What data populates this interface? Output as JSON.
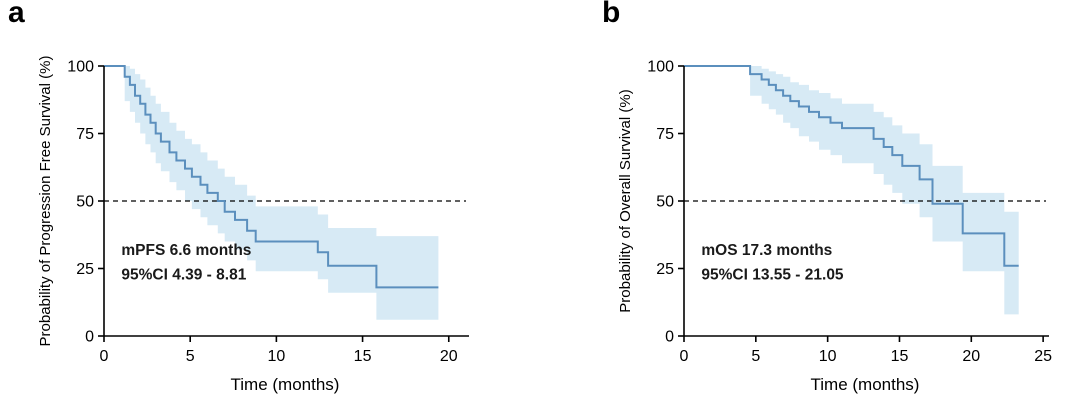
{
  "figure": {
    "panels": [
      {
        "label": "a"
      },
      {
        "label": "b"
      }
    ]
  },
  "colors": {
    "curve": "#5b8fbd",
    "band": "#d5e9f4",
    "axis": "#000000",
    "median": "#000000",
    "text": "#000000",
    "background": "#ffffff"
  },
  "chart_data": [
    {
      "type": "line",
      "subtype": "kaplan-meier-step",
      "panel": "a",
      "xlabel": "Time (months)",
      "ylabel": "Probability of Progression Free Survival (%)",
      "annotations": [
        "mPFS 6.6 months",
        "95%CI 4.39 - 8.81"
      ],
      "median_months": 6.6,
      "ci_text": "4.39 - 8.81",
      "xlim": [
        0,
        21
      ],
      "ylim": [
        0,
        100
      ],
      "xticks": [
        0,
        5,
        10,
        15,
        20
      ],
      "yticks": [
        0,
        25,
        50,
        75,
        100
      ],
      "median_y": 50,
      "end_time": 19.4,
      "steps": [
        [
          0,
          100
        ],
        [
          1.2,
          96
        ],
        [
          1.5,
          93
        ],
        [
          1.8,
          89
        ],
        [
          2.1,
          86
        ],
        [
          2.4,
          82
        ],
        [
          2.7,
          79
        ],
        [
          3.0,
          75
        ],
        [
          3.3,
          72
        ],
        [
          3.8,
          68
        ],
        [
          4.2,
          65
        ],
        [
          4.7,
          62
        ],
        [
          5.1,
          59
        ],
        [
          5.6,
          56
        ],
        [
          6.0,
          53
        ],
        [
          6.6,
          50
        ],
        [
          7.0,
          46
        ],
        [
          7.6,
          43
        ],
        [
          8.3,
          39
        ],
        [
          8.8,
          35
        ],
        [
          12.4,
          31
        ],
        [
          13.0,
          26
        ],
        [
          15.8,
          18
        ]
      ],
      "ci_upper": [
        [
          0,
          100
        ],
        [
          1.2,
          100
        ],
        [
          1.5,
          99
        ],
        [
          1.8,
          97
        ],
        [
          2.1,
          95
        ],
        [
          2.4,
          92
        ],
        [
          2.7,
          89
        ],
        [
          3.0,
          86
        ],
        [
          3.3,
          83
        ],
        [
          3.8,
          79
        ],
        [
          4.2,
          76
        ],
        [
          4.7,
          73
        ],
        [
          5.1,
          71
        ],
        [
          5.6,
          68
        ],
        [
          6.0,
          65
        ],
        [
          6.6,
          62
        ],
        [
          7.0,
          59
        ],
        [
          7.6,
          56
        ],
        [
          8.3,
          52
        ],
        [
          8.8,
          48
        ],
        [
          12.4,
          45
        ],
        [
          13.0,
          40
        ],
        [
          15.8,
          37
        ]
      ],
      "ci_lower": [
        [
          0,
          100
        ],
        [
          1.2,
          87
        ],
        [
          1.5,
          83
        ],
        [
          1.8,
          79
        ],
        [
          2.1,
          75
        ],
        [
          2.4,
          71
        ],
        [
          2.7,
          68
        ],
        [
          3.0,
          64
        ],
        [
          3.3,
          61
        ],
        [
          3.8,
          57
        ],
        [
          4.2,
          54
        ],
        [
          4.7,
          50
        ],
        [
          5.1,
          47
        ],
        [
          5.6,
          44
        ],
        [
          6.0,
          41
        ],
        [
          6.6,
          38
        ],
        [
          7.0,
          35
        ],
        [
          7.6,
          32
        ],
        [
          8.3,
          28
        ],
        [
          8.8,
          24
        ],
        [
          12.4,
          21
        ],
        [
          13.0,
          16
        ],
        [
          15.8,
          6
        ]
      ]
    },
    {
      "type": "line",
      "subtype": "kaplan-meier-step",
      "panel": "b",
      "xlabel": "Time (months)",
      "ylabel": "Probability of Overall Survival (%)",
      "annotations": [
        "mOS 17.3 months",
        "95%CI 13.55 - 21.05"
      ],
      "median_months": 17.3,
      "ci_text": "13.55 - 21.05",
      "xlim": [
        0,
        25.2
      ],
      "ylim": [
        0,
        100
      ],
      "xticks": [
        0,
        5,
        10,
        15,
        20,
        25
      ],
      "yticks": [
        0,
        25,
        50,
        75,
        100
      ],
      "median_y": 50,
      "end_time": 23.3,
      "steps": [
        [
          0,
          100
        ],
        [
          4.6,
          97
        ],
        [
          5.4,
          95
        ],
        [
          5.9,
          93
        ],
        [
          6.4,
          91
        ],
        [
          6.9,
          89
        ],
        [
          7.4,
          87
        ],
        [
          8.0,
          85
        ],
        [
          8.7,
          83
        ],
        [
          9.4,
          81
        ],
        [
          10.2,
          79
        ],
        [
          11.0,
          77
        ],
        [
          13.2,
          73
        ],
        [
          13.9,
          70
        ],
        [
          14.5,
          67
        ],
        [
          15.2,
          63
        ],
        [
          16.4,
          58
        ],
        [
          17.3,
          49
        ],
        [
          19.4,
          38
        ],
        [
          22.3,
          26
        ]
      ],
      "ci_upper": [
        [
          0,
          100
        ],
        [
          4.6,
          100
        ],
        [
          5.4,
          99
        ],
        [
          5.9,
          98
        ],
        [
          6.4,
          97
        ],
        [
          6.9,
          96
        ],
        [
          7.4,
          94
        ],
        [
          8.0,
          93
        ],
        [
          8.7,
          91
        ],
        [
          9.4,
          90
        ],
        [
          10.2,
          88
        ],
        [
          11.0,
          86
        ],
        [
          13.2,
          83
        ],
        [
          13.9,
          81
        ],
        [
          14.5,
          78
        ],
        [
          15.2,
          75
        ],
        [
          16.4,
          71
        ],
        [
          17.3,
          63
        ],
        [
          19.4,
          53
        ],
        [
          22.3,
          46
        ]
      ],
      "ci_lower": [
        [
          0,
          100
        ],
        [
          4.6,
          89
        ],
        [
          5.4,
          86
        ],
        [
          5.9,
          84
        ],
        [
          6.4,
          82
        ],
        [
          6.9,
          79
        ],
        [
          7.4,
          77
        ],
        [
          8.0,
          74
        ],
        [
          8.7,
          72
        ],
        [
          9.4,
          69
        ],
        [
          10.2,
          67
        ],
        [
          11.0,
          64
        ],
        [
          13.2,
          60
        ],
        [
          13.9,
          56
        ],
        [
          14.5,
          53
        ],
        [
          15.2,
          49
        ],
        [
          16.4,
          44
        ],
        [
          17.3,
          35
        ],
        [
          19.4,
          24
        ],
        [
          22.3,
          8
        ]
      ]
    }
  ]
}
